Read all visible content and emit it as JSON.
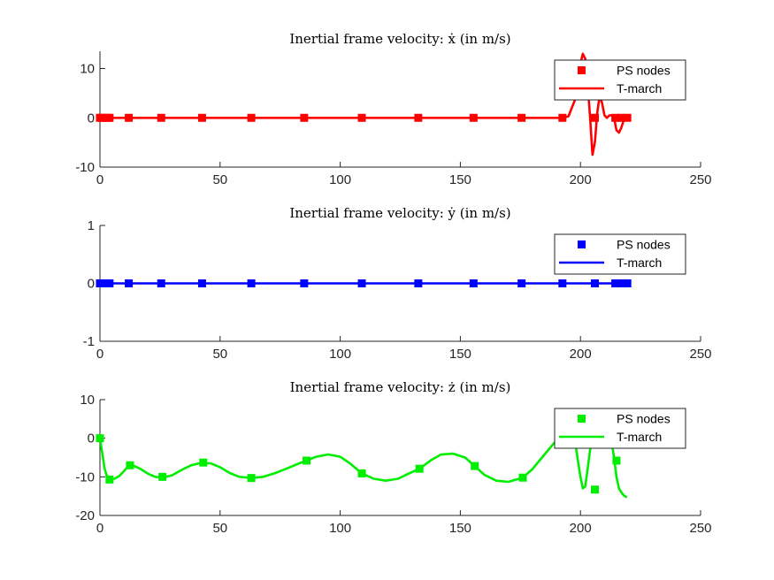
{
  "chart_data": [
    {
      "type": "line",
      "title": "Inertial frame velocity: ẋ (in m/s)",
      "xlim": [
        0,
        250
      ],
      "ylim": [
        -10,
        13.5
      ],
      "xticks": [
        0,
        50,
        100,
        150,
        200,
        250
      ],
      "yticks": [
        -10,
        0,
        10
      ],
      "color": "#ff0000",
      "legend": {
        "placement": "top-right",
        "entries": [
          "PS nodes",
          "T-march"
        ]
      },
      "series": [
        {
          "name": "PS nodes",
          "marker": "square",
          "x": [
            0,
            1,
            3,
            4,
            12,
            25.5,
            42.5,
            63,
            85,
            109,
            132.5,
            155.5,
            175.5,
            192.5,
            206,
            214.5,
            217,
            219.5
          ],
          "y": [
            0,
            0,
            0,
            0,
            0,
            0,
            0,
            0,
            0,
            0,
            0,
            0,
            0,
            0,
            0,
            0,
            0,
            0
          ]
        },
        {
          "name": "T-march",
          "marker": "none",
          "x": [
            0,
            192,
            195,
            198,
            199.5,
            201,
            202,
            203,
            204,
            205,
            206,
            207,
            208,
            209,
            210,
            211,
            212,
            213,
            214,
            215,
            216,
            217,
            218,
            219,
            220
          ],
          "y": [
            0,
            0,
            0.3,
            4,
            10,
            13,
            12,
            7,
            0,
            -7.5,
            -5,
            1,
            4.5,
            3,
            0.5,
            0,
            0.5,
            0.5,
            0,
            -2.5,
            -3,
            -2,
            -0.5,
            0,
            0
          ]
        }
      ]
    },
    {
      "type": "line",
      "title": "Inertial frame velocity: ẏ (in m/s)",
      "xlim": [
        0,
        250
      ],
      "ylim": [
        -1,
        1
      ],
      "xticks": [
        0,
        50,
        100,
        150,
        200,
        250
      ],
      "yticks": [
        -1,
        0,
        1
      ],
      "color": "#0000ff",
      "legend": {
        "placement": "top-right",
        "entries": [
          "PS nodes",
          "T-march"
        ]
      },
      "series": [
        {
          "name": "PS nodes",
          "marker": "square",
          "x": [
            0,
            1,
            3,
            4,
            12,
            25.5,
            42.5,
            63,
            85,
            109,
            132.5,
            155.5,
            175.5,
            192.5,
            206,
            214.5,
            217,
            219.5
          ],
          "y": [
            0,
            0,
            0,
            0,
            0,
            0,
            0,
            0,
            0,
            0,
            0,
            0,
            0,
            0,
            0,
            0,
            0,
            0
          ]
        },
        {
          "name": "T-march",
          "marker": "none",
          "x": [
            0,
            220
          ],
          "y": [
            0,
            0
          ]
        }
      ]
    },
    {
      "type": "line",
      "title": "Inertial frame velocity: ż (in m/s)",
      "xlim": [
        0,
        250
      ],
      "ylim": [
        -20,
        10
      ],
      "xticks": [
        0,
        50,
        100,
        150,
        200,
        250
      ],
      "yticks": [
        -20,
        -10,
        0,
        10
      ],
      "color": "#00ee00",
      "legend": {
        "placement": "top-right",
        "entries": [
          "PS nodes",
          "T-march"
        ]
      },
      "series": [
        {
          "name": "PS nodes",
          "marker": "square",
          "x": [
            0,
            4,
            12.5,
            26,
            43,
            63,
            86,
            109,
            133,
            156,
            176,
            206,
            215
          ],
          "y": [
            0,
            -10.7,
            -7,
            -10,
            -6.3,
            -10.3,
            -5.8,
            -9.1,
            -7.9,
            -7.2,
            -10.2,
            -13.3,
            -5.8
          ]
        },
        {
          "name": "T-march",
          "marker": "none",
          "x": [
            0,
            1,
            2,
            3,
            4,
            6,
            8,
            10,
            12,
            14,
            17,
            20,
            23,
            26,
            30,
            34,
            38,
            42,
            46,
            50,
            54,
            58,
            63,
            68,
            73,
            78,
            83,
            86,
            90,
            95,
            100,
            104,
            109,
            114,
            119,
            124,
            128,
            133,
            138,
            142,
            147,
            152,
            156,
            160,
            165,
            170,
            176,
            180,
            184,
            188,
            192,
            195,
            197,
            198,
            199,
            200,
            201,
            202,
            203,
            204,
            205,
            206,
            207,
            208,
            209,
            210,
            211,
            212,
            213,
            214,
            215,
            216,
            217,
            218,
            219
          ],
          "y": [
            0,
            -4,
            -8,
            -10,
            -10.7,
            -10.5,
            -9.8,
            -8.5,
            -7,
            -7.1,
            -8,
            -9.2,
            -10,
            -10.2,
            -9.6,
            -8.2,
            -7,
            -6.4,
            -6.5,
            -7.5,
            -9,
            -10,
            -10.3,
            -10,
            -9,
            -7.8,
            -6.5,
            -5.8,
            -4.8,
            -4.2,
            -4.8,
            -6.5,
            -9.1,
            -10.5,
            -11,
            -10.5,
            -9.3,
            -7.9,
            -5.6,
            -4.2,
            -4,
            -5,
            -7.2,
            -9.5,
            -11,
            -11.3,
            -10.2,
            -8,
            -5,
            -2,
            1,
            2.5,
            1.5,
            -2,
            -6,
            -10,
            -13,
            -12.5,
            -8,
            -3,
            1,
            2,
            1.5,
            1,
            1,
            1,
            1,
            0.5,
            -1,
            -5,
            -10,
            -13,
            -14,
            -14.8,
            -15.2
          ]
        }
      ]
    }
  ]
}
